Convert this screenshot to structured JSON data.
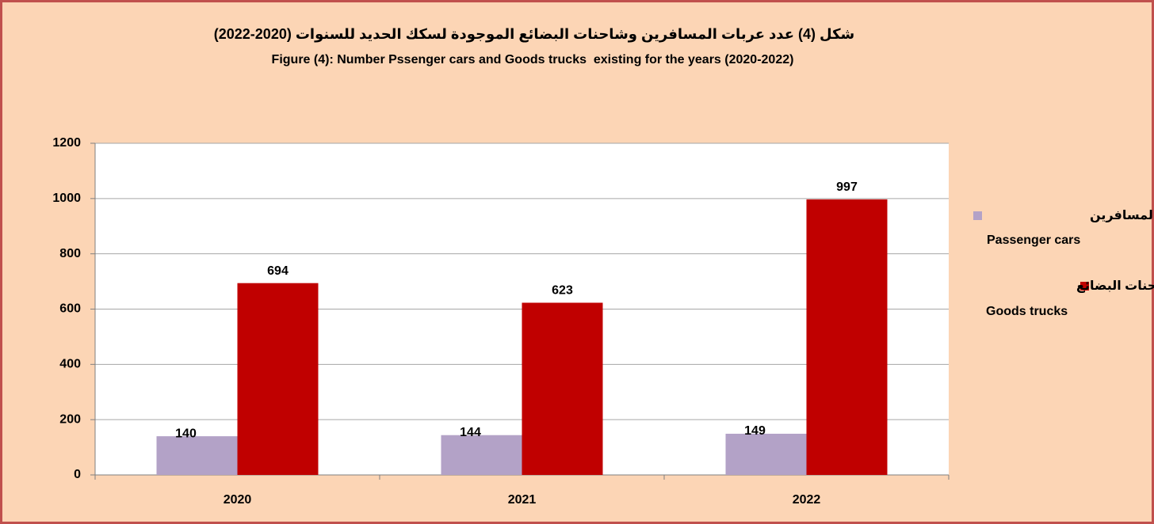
{
  "chart_data": {
    "type": "bar",
    "title_ar": "شكل (4) عدد عربات المسافرين وشاحنات البضائع الموجودة لسكك الحديد للسنوات (2020-2022)",
    "title": "Figure (4): Number Pssenger cars and Goods trucks  existing for the years (2020-2022)",
    "categories": [
      "2020",
      "2021",
      "2022"
    ],
    "series": [
      {
        "name": "Passenger cars",
        "name_ar": "عربات المسافرين",
        "color": "#b3a2c7",
        "values": [
          140,
          144,
          149
        ]
      },
      {
        "name": "Goods trucks",
        "name_ar": "شاحنات البضائع",
        "color": "#c00000",
        "values": [
          694,
          623,
          997
        ]
      }
    ],
    "ylim": [
      0,
      1200
    ],
    "yticks": [
      0,
      200,
      400,
      600,
      800,
      1000,
      1200
    ],
    "grid": true,
    "legend": "right"
  }
}
